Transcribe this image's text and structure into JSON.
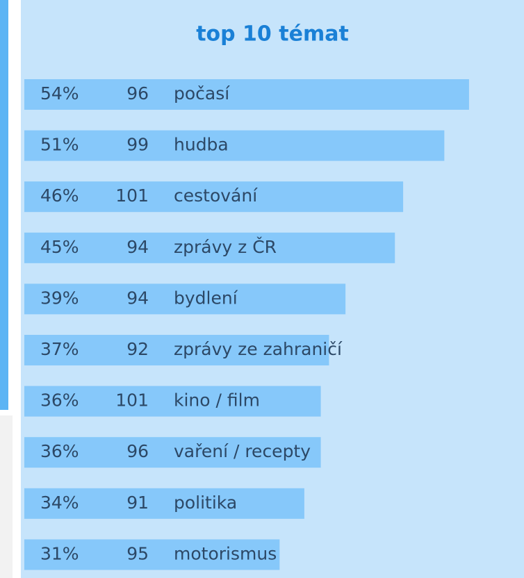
{
  "chart_data": {
    "type": "barh",
    "title": "top 10 témat",
    "categories": [
      "počasí",
      "hudba",
      "cestování",
      "zprávy z ČR",
      "bydlení",
      "zprávy ze zahraničí",
      "kino / film",
      "vaření / recepty",
      "politika",
      "motorismus"
    ],
    "values": [
      54,
      51,
      46,
      45,
      39,
      37,
      36,
      36,
      34,
      31
    ],
    "value_labels": [
      "54%",
      "51%",
      "46%",
      "45%",
      "39%",
      "37%",
      "36%",
      "36%",
      "34%",
      "31%"
    ],
    "counts": [
      96,
      99,
      101,
      94,
      94,
      92,
      101,
      96,
      91,
      95
    ],
    "color": "#86c8fa"
  }
}
